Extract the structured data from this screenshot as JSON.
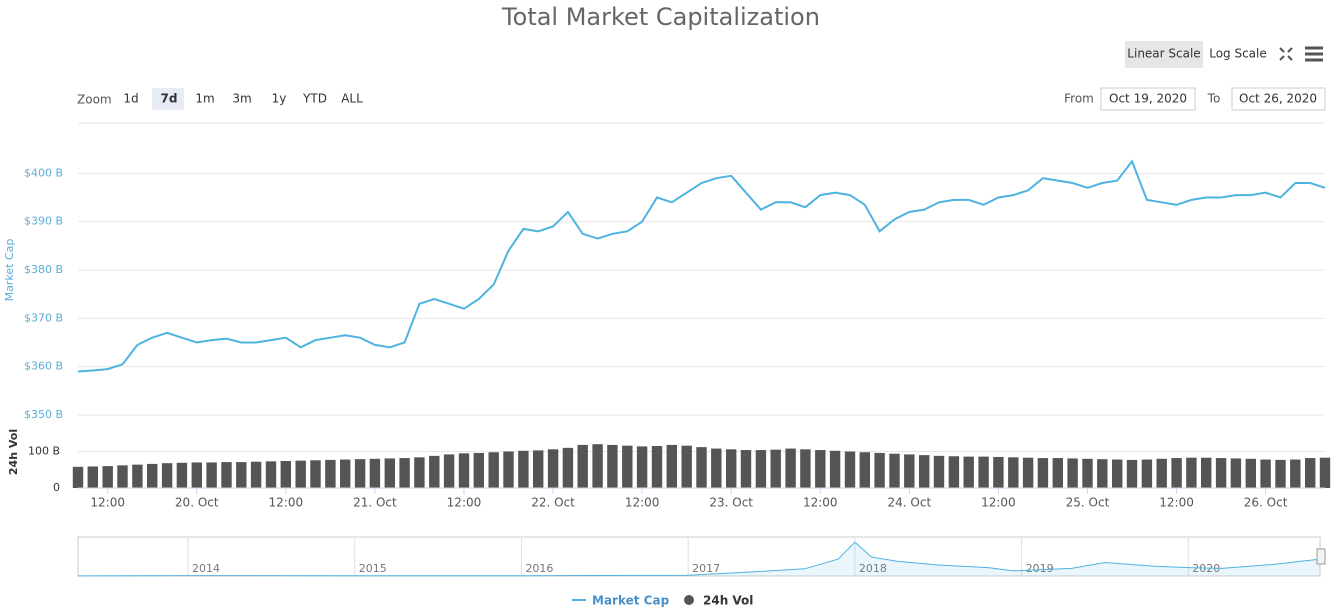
{
  "ui": {
    "scale_buttons": [
      "Linear Scale",
      "Log Scale"
    ],
    "zoom_label": "Zoom",
    "zoom_buttons": [
      "1d",
      "7d",
      "1m",
      "3m",
      "1y",
      "YTD",
      "ALL"
    ],
    "from_label": "From",
    "from_value": "Oct 19, 2020",
    "to_label": "To",
    "to_value": "Oct 26, 2020"
  },
  "chart_data": [
    {
      "type": "line",
      "title": "Total Market Capitalization",
      "y_label": "Market Cap",
      "x": [
        "2020-10-19T08:00",
        "2020-10-19T10:00",
        "2020-10-19T12:00",
        "2020-10-19T14:00",
        "2020-10-19T16:00",
        "2020-10-19T18:00",
        "2020-10-19T20:00",
        "2020-10-19T22:00",
        "2020-10-20T00:00",
        "2020-10-20T02:00",
        "2020-10-20T04:00",
        "2020-10-20T06:00",
        "2020-10-20T08:00",
        "2020-10-20T10:00",
        "2020-10-20T12:00",
        "2020-10-20T14:00",
        "2020-10-20T16:00",
        "2020-10-20T18:00",
        "2020-10-20T20:00",
        "2020-10-20T22:00",
        "2020-10-21T00:00",
        "2020-10-21T02:00",
        "2020-10-21T04:00",
        "2020-10-21T06:00",
        "2020-10-21T08:00",
        "2020-10-21T10:00",
        "2020-10-21T12:00",
        "2020-10-21T14:00",
        "2020-10-21T16:00",
        "2020-10-21T18:00",
        "2020-10-21T20:00",
        "2020-10-21T22:00",
        "2020-10-22T00:00",
        "2020-10-22T02:00",
        "2020-10-22T04:00",
        "2020-10-22T06:00",
        "2020-10-22T08:00",
        "2020-10-22T10:00",
        "2020-10-22T12:00",
        "2020-10-22T14:00",
        "2020-10-22T16:00",
        "2020-10-22T18:00",
        "2020-10-22T20:00",
        "2020-10-22T22:00",
        "2020-10-23T00:00",
        "2020-10-23T02:00",
        "2020-10-23T04:00",
        "2020-10-23T06:00",
        "2020-10-23T08:00",
        "2020-10-23T10:00",
        "2020-10-23T12:00",
        "2020-10-23T14:00",
        "2020-10-23T16:00",
        "2020-10-23T18:00",
        "2020-10-23T20:00",
        "2020-10-23T22:00",
        "2020-10-24T00:00",
        "2020-10-24T02:00",
        "2020-10-24T04:00",
        "2020-10-24T06:00",
        "2020-10-24T08:00",
        "2020-10-24T10:00",
        "2020-10-24T12:00",
        "2020-10-24T14:00",
        "2020-10-24T16:00",
        "2020-10-24T18:00",
        "2020-10-24T20:00",
        "2020-10-24T22:00",
        "2020-10-25T00:00",
        "2020-10-25T02:00",
        "2020-10-25T04:00",
        "2020-10-25T06:00",
        "2020-10-25T08:00",
        "2020-10-25T10:00",
        "2020-10-25T12:00",
        "2020-10-25T14:00",
        "2020-10-25T16:00",
        "2020-10-25T18:00",
        "2020-10-25T20:00",
        "2020-10-25T22:00",
        "2020-10-26T00:00",
        "2020-10-26T02:00",
        "2020-10-26T04:00",
        "2020-10-26T06:00",
        "2020-10-26T08:00"
      ],
      "xlim": [
        "2020-10-19T08:00",
        "2020-10-26T08:00"
      ],
      "series": [
        {
          "name": "Market Cap",
          "color": "#4fb3e0",
          "values": [
            359,
            359.2,
            359.5,
            360.5,
            364.5,
            366,
            367,
            366,
            365,
            365.5,
            365.8,
            365,
            365,
            365.5,
            366,
            364,
            365.5,
            366,
            366.5,
            366,
            364.5,
            364,
            365,
            373,
            374,
            373,
            372,
            374,
            377,
            384,
            388.5,
            388,
            389,
            392,
            387.5,
            386.5,
            387.5,
            388,
            390,
            395,
            394,
            396,
            398,
            399,
            399.5,
            396,
            392.5,
            394,
            394,
            393,
            395.5,
            396,
            395.5,
            393.5,
            388,
            390.5,
            392,
            392.5,
            394,
            394.5,
            394.5,
            393.5,
            395,
            395.5,
            396.5,
            399,
            398.5,
            398,
            397,
            398,
            398.5,
            402.5,
            394.5,
            394,
            393.5,
            394.5,
            395,
            395,
            395.5,
            395.5,
            396,
            395,
            398,
            398,
            397
          ]
        }
      ],
      "ylim": [
        350,
        410
      ],
      "yticks": [
        {
          "value": 350,
          "label": "$350 B"
        },
        {
          "value": 360,
          "label": "$360 B"
        },
        {
          "value": 370,
          "label": "$370 B"
        },
        {
          "value": 380,
          "label": "$380 B"
        },
        {
          "value": 390,
          "label": "$390 B"
        },
        {
          "value": 400,
          "label": "$400 B"
        }
      ],
      "grid": true
    },
    {
      "type": "bar",
      "y_label": "24h Vol",
      "series": [
        {
          "name": "24h Vol",
          "color": "#555555",
          "values": [
            58,
            59,
            60,
            62,
            64,
            66,
            68,
            69,
            70,
            70,
            71,
            71,
            72,
            73,
            74,
            75,
            76,
            77,
            78,
            79,
            80,
            81,
            82,
            84,
            88,
            92,
            95,
            96,
            98,
            100,
            102,
            103,
            106,
            110,
            118,
            120,
            118,
            116,
            114,
            115,
            118,
            116,
            112,
            108,
            106,
            104,
            104,
            105,
            108,
            106,
            104,
            102,
            100,
            98,
            96,
            94,
            92,
            90,
            88,
            87,
            86,
            86,
            85,
            84,
            83,
            82,
            82,
            81,
            80,
            79,
            78,
            77,
            78,
            80,
            82,
            83,
            83,
            82,
            81,
            80,
            78,
            77,
            78,
            82,
            83
          ]
        }
      ],
      "ylim": [
        0,
        200
      ],
      "yticks": [
        0,
        {
          "value": 100,
          "label": "100 B"
        }
      ],
      "xticks": [
        {
          "value": "2020-10-19T12:00",
          "label": "12:00"
        },
        {
          "value": "2020-10-20T00:00",
          "label": "20. Oct"
        },
        {
          "value": "2020-10-20T12:00",
          "label": "12:00"
        },
        {
          "value": "2020-10-21T00:00",
          "label": "21. Oct"
        },
        {
          "value": "2020-10-21T12:00",
          "label": "12:00"
        },
        {
          "value": "2020-10-22T00:00",
          "label": "22. Oct"
        },
        {
          "value": "2020-10-22T12:00",
          "label": "12:00"
        },
        {
          "value": "2020-10-23T00:00",
          "label": "23. Oct"
        },
        {
          "value": "2020-10-23T12:00",
          "label": "12:00"
        },
        {
          "value": "2020-10-24T00:00",
          "label": "24. Oct"
        },
        {
          "value": "2020-10-24T12:00",
          "label": "12:00"
        },
        {
          "value": "2020-10-25T00:00",
          "label": "25. Oct"
        },
        {
          "value": "2020-10-25T12:00",
          "label": "12:00"
        },
        {
          "value": "2020-10-26T00:00",
          "label": "26. Oct"
        }
      ]
    },
    {
      "type": "area",
      "color": "#4fb3e0",
      "x": [
        2013.34,
        2014,
        2015,
        2016,
        2017,
        2017.4,
        2017.7,
        2017.9,
        2018,
        2018.1,
        2018.25,
        2018.5,
        2018.8,
        2018.95,
        2019.3,
        2019.5,
        2019.8,
        2020,
        2020.2,
        2020.5,
        2020.79
      ],
      "values": [
        2,
        10,
        5,
        7,
        18,
        100,
        170,
        400,
        800,
        450,
        350,
        260,
        200,
        120,
        180,
        320,
        230,
        200,
        180,
        270,
        400
      ],
      "xlim": [
        2013.34,
        2020.79
      ],
      "ylim": [
        0,
        900
      ],
      "xticks": [
        2014,
        2015,
        2016,
        2017,
        2018,
        2019,
        2020
      ]
    }
  ]
}
